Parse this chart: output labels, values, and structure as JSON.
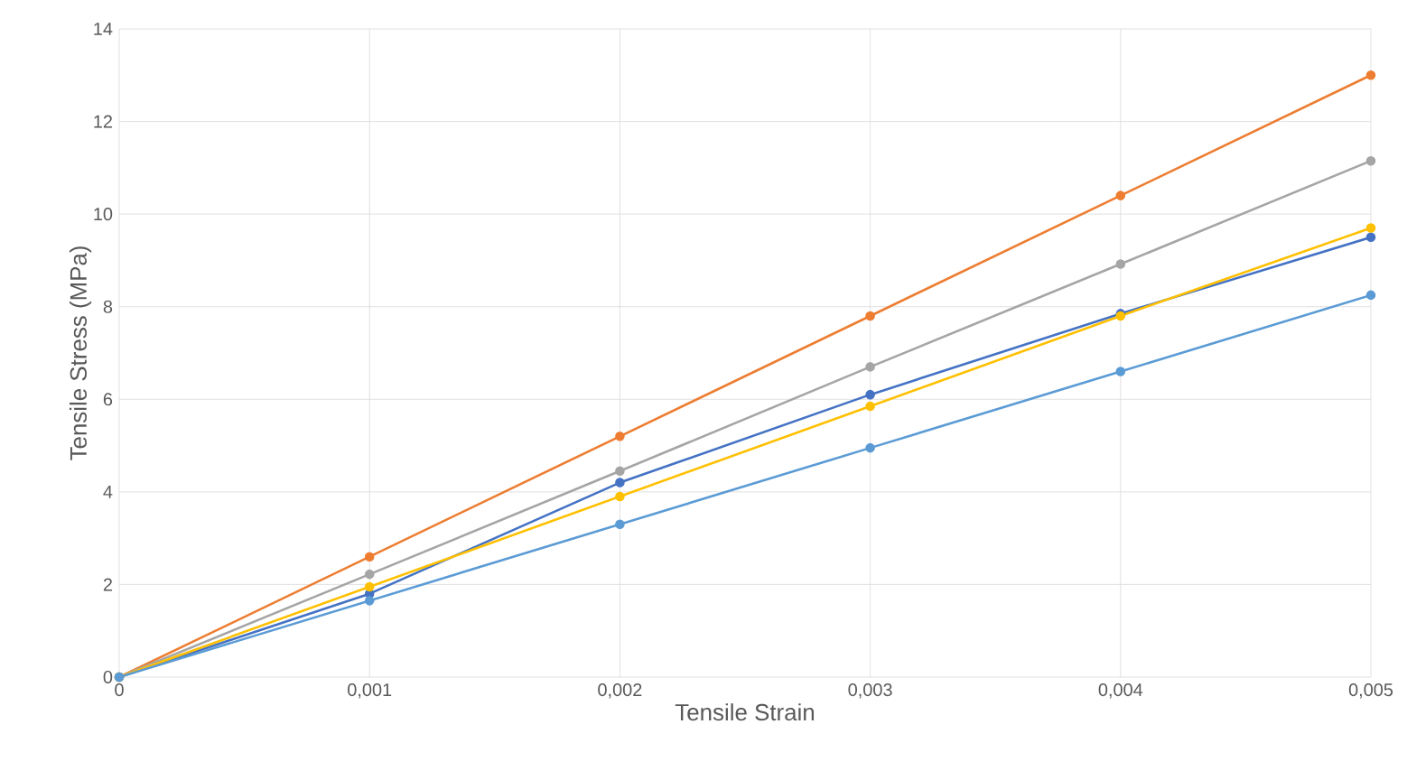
{
  "chart_data": {
    "type": "line",
    "xlabel": "Tensile Strain",
    "ylabel": "Tensile Stress (MPa)",
    "x": [
      0,
      0.001,
      0.002,
      0.003,
      0.004,
      0.005
    ],
    "series": [
      {
        "color": "#ed7d31",
        "values": [
          0,
          2.6,
          5.2,
          7.8,
          10.4,
          13.0
        ]
      },
      {
        "color": "#a5a5a5",
        "values": [
          0,
          2.22,
          4.45,
          6.7,
          8.92,
          11.15
        ]
      },
      {
        "color": "#4472c4",
        "values": [
          0,
          1.8,
          4.2,
          6.1,
          7.85,
          9.5
        ]
      },
      {
        "color": "#ffc000",
        "values": [
          0,
          1.95,
          3.9,
          5.85,
          7.8,
          9.7
        ]
      },
      {
        "color": "#5b9bd5",
        "values": [
          0,
          1.65,
          3.3,
          4.95,
          6.6,
          8.25
        ]
      }
    ],
    "xlim": [
      0,
      0.005
    ],
    "ylim": [
      0,
      14
    ],
    "xticks": [
      0,
      {
        "value": 0.001,
        "label": "0,001"
      },
      {
        "value": 0.002,
        "label": "0,002"
      },
      {
        "value": 0.003,
        "label": "0,003"
      },
      {
        "value": 0.004,
        "label": "0,004"
      },
      {
        "value": 0.005,
        "label": "0,005"
      }
    ],
    "yticks": [
      0,
      2,
      4,
      6,
      8,
      10,
      12,
      14
    ],
    "grid": true,
    "marker": "circle",
    "line_style": "solid"
  }
}
